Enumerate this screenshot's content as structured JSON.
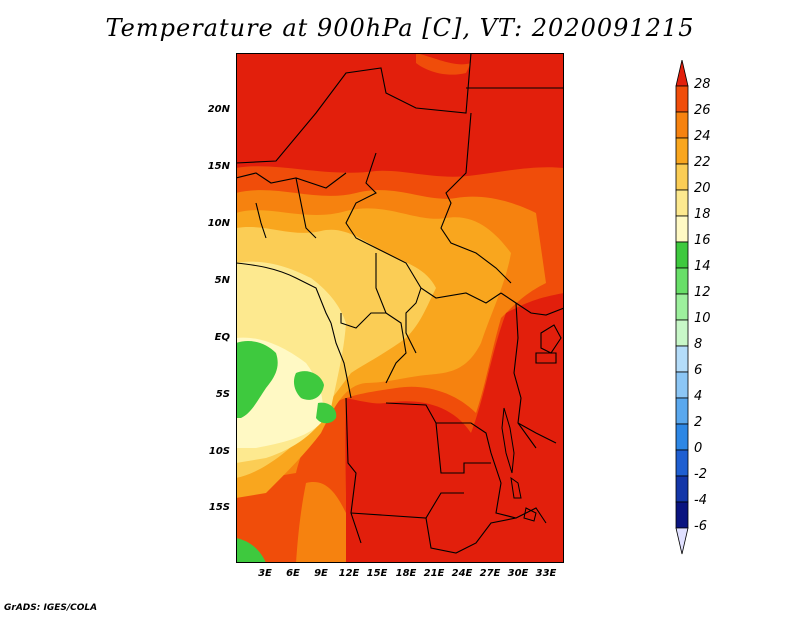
{
  "title": "Temperature at 900hPa [C], VT: 2020091215",
  "footer": "GrADS: IGES/COLA",
  "map": {
    "lon_range": [
      0,
      35
    ],
    "lat_range": [
      -20,
      25
    ],
    "lat_labels": [
      "20N",
      "15N",
      "10N",
      "5N",
      "EQ",
      "5S",
      "10S",
      "15S"
    ],
    "lon_labels": [
      "3E",
      "6E",
      "9E",
      "12E",
      "15E",
      "18E",
      "21E",
      "24E",
      "27E",
      "30E",
      "33E"
    ]
  },
  "colorbar": {
    "labels": [
      "28",
      "26",
      "24",
      "22",
      "20",
      "18",
      "16",
      "14",
      "12",
      "10",
      "8",
      "6",
      "4",
      "2",
      "0",
      "-2",
      "-4",
      "-6"
    ],
    "colors": [
      "#e21f0c",
      "#f04d0a",
      "#f6820f",
      "#f9a61e",
      "#fbcd55",
      "#fde98f",
      "#fff9c4",
      "#3ec93e",
      "#68df68",
      "#9df09d",
      "#c8f7c8",
      "#b4dcf9",
      "#8cc6f5",
      "#5aa8ee",
      "#2d87e5",
      "#1f5fd1",
      "#1336a8",
      "#0a1480",
      "#e0e0ff"
    ]
  }
}
